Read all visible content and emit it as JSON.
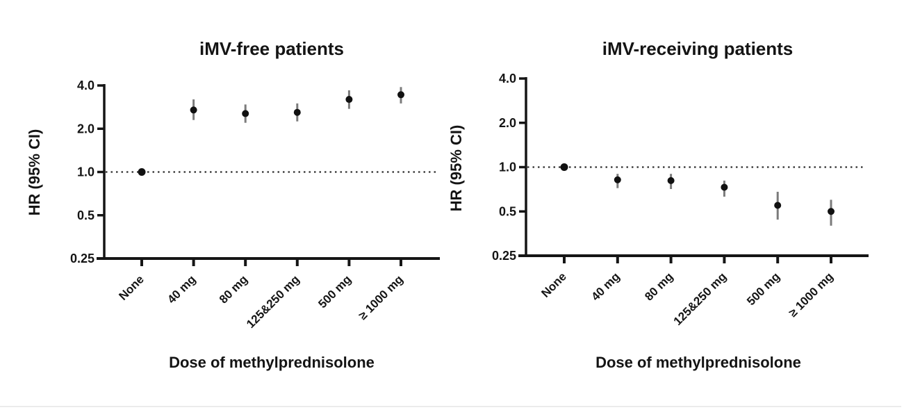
{
  "page": {
    "background": "#ffffff",
    "bottom_rule_color": "#ebebeb"
  },
  "colors": {
    "marker": "#111111",
    "error_bar": "#7b7b7b",
    "axis": "#151515",
    "reference_line": "#2e2e2e"
  },
  "chart_data": [
    {
      "type": "scatter",
      "subtype": "point-estimates-with-error-bars",
      "title": "iMV-free patients",
      "xlabel": "Dose of methylprednisolone",
      "ylabel": "HR (95% CI)",
      "categories": [
        "None",
        "40 mg",
        "80 mg",
        "125&250 mg",
        "500 mg",
        "≥ 1000 mg"
      ],
      "series": [
        {
          "name": "HR",
          "values": [
            1.0,
            2.7,
            2.55,
            2.6,
            3.2,
            3.45
          ],
          "ci_low": [
            null,
            2.3,
            2.2,
            2.25,
            2.75,
            3.0
          ],
          "ci_high": [
            null,
            3.2,
            2.95,
            3.0,
            3.7,
            3.9
          ]
        }
      ],
      "yscale": "log2",
      "ylim": [
        0.25,
        4.0
      ],
      "yticks": [
        4.0,
        2.0,
        1.0,
        0.5,
        0.25
      ],
      "ytick_labels": [
        "4.0",
        "2.0",
        "1.0",
        "0.5",
        "0.25"
      ],
      "reference_line": 1.0,
      "grid": false,
      "legend": false
    },
    {
      "type": "scatter",
      "subtype": "point-estimates-with-error-bars",
      "title": "iMV-receiving patients",
      "xlabel": "Dose of methylprednisolone",
      "ylabel": "HR (95% CI)",
      "categories": [
        "None",
        "40 mg",
        "80 mg",
        "125&250 mg",
        "500 mg",
        "≥ 1000 mg"
      ],
      "series": [
        {
          "name": "HR",
          "values": [
            1.0,
            0.82,
            0.81,
            0.73,
            0.55,
            0.5
          ],
          "ci_low": [
            null,
            0.72,
            0.71,
            0.63,
            0.44,
            0.4
          ],
          "ci_high": [
            null,
            0.9,
            0.9,
            0.81,
            0.68,
            0.6
          ]
        }
      ],
      "yscale": "log2",
      "ylim": [
        0.25,
        4.0
      ],
      "yticks": [
        4.0,
        2.0,
        1.0,
        0.5,
        0.25
      ],
      "ytick_labels": [
        "4.0",
        "2.0",
        "1.0",
        "0.5",
        "0.25"
      ],
      "reference_line": 1.0,
      "grid": false,
      "legend": false
    }
  ]
}
